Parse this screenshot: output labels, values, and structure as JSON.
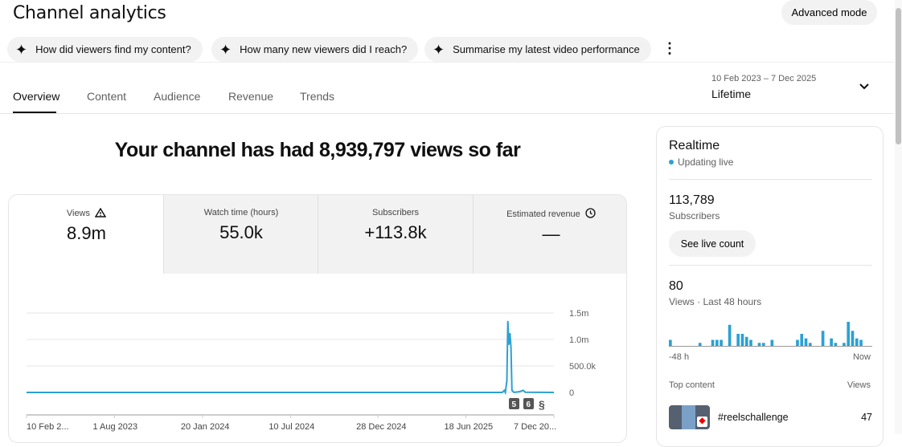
{
  "header": {
    "title": "Channel analytics",
    "advanced_mode": "Advanced mode"
  },
  "chips": [
    "How did viewers find my content?",
    "How many new viewers did I reach?",
    "Summarise my latest video performance"
  ],
  "tabs": [
    {
      "label": "Overview",
      "active": true
    },
    {
      "label": "Content"
    },
    {
      "label": "Audience"
    },
    {
      "label": "Revenue"
    },
    {
      "label": "Trends"
    }
  ],
  "date": {
    "range": "10 Feb 2023 – 7 Dec 2025",
    "period": "Lifetime"
  },
  "headline": "Your channel has had 8,939,797 views so far",
  "metrics": [
    {
      "label": "Views",
      "value": "8.9m",
      "icon": "warning-icon"
    },
    {
      "label": "Watch time (hours)",
      "value": "55.0k"
    },
    {
      "label": "Subscribers",
      "value": "+113.8k"
    },
    {
      "label": "Estimated revenue",
      "value": "—",
      "icon": "clock-icon"
    }
  ],
  "chart_data": {
    "type": "line",
    "color": "#2ba1d3",
    "x_ticks": [
      "10 Feb 2...",
      "1 Aug 2023",
      "20 Jan 2024",
      "10 Jul 2024",
      "28 Dec 2024",
      "18 Jun 2025",
      "7 Dec 20..."
    ],
    "x_tick_dates": [
      "2023-02-10",
      "2023-08-01",
      "2024-01-20",
      "2024-07-10",
      "2024-12-28",
      "2025-06-18",
      "2025-12-07"
    ],
    "y_ticks": [
      "0",
      "500.0k",
      "1.0m",
      "1.5m"
    ],
    "ylim": [
      0,
      1500000
    ],
    "xlim": [
      "2023-02-10",
      "2025-12-07"
    ],
    "grid": true,
    "series": [
      {
        "points": [
          [
            "2023-02-10",
            0
          ],
          [
            "2025-08-28",
            0
          ],
          [
            "2025-09-01",
            40000
          ],
          [
            "2025-09-03",
            0
          ],
          [
            "2025-09-06",
            220000
          ],
          [
            "2025-09-08",
            1350000
          ],
          [
            "2025-09-10",
            900000
          ],
          [
            "2025-09-12",
            1120000
          ],
          [
            "2025-09-14",
            850000
          ],
          [
            "2025-09-16",
            40000
          ],
          [
            "2025-09-20",
            0
          ],
          [
            "2025-10-01",
            15000
          ],
          [
            "2025-10-08",
            40000
          ],
          [
            "2025-10-12",
            5000
          ],
          [
            "2025-12-07",
            0
          ]
        ]
      }
    ],
    "markers": [
      "5",
      "6",
      "shorts-icon"
    ]
  },
  "realtime": {
    "title": "Realtime",
    "status": "Updating live",
    "subs_value": "113,789",
    "subs_label": "Subscribers",
    "live_button": "See live count",
    "views_value": "80",
    "views_label": "Views · Last 48 hours",
    "bars": [
      2,
      0,
      0,
      0,
      0,
      0,
      0,
      1,
      0,
      0,
      2,
      2,
      2,
      0,
      7,
      0,
      4,
      4,
      3,
      2,
      0,
      1,
      1,
      0,
      2,
      0,
      0,
      0,
      0,
      0,
      2,
      4,
      2.5,
      1,
      0,
      0,
      5,
      0,
      2.5,
      1,
      0,
      1,
      8,
      5,
      2.5,
      2,
      0,
      0
    ],
    "axis_start": "-48 h",
    "axis_end": "Now",
    "top_content_label": "Top content",
    "views_col": "Views",
    "top_content": [
      {
        "title": "#reelschallenge",
        "views": "47"
      }
    ]
  }
}
